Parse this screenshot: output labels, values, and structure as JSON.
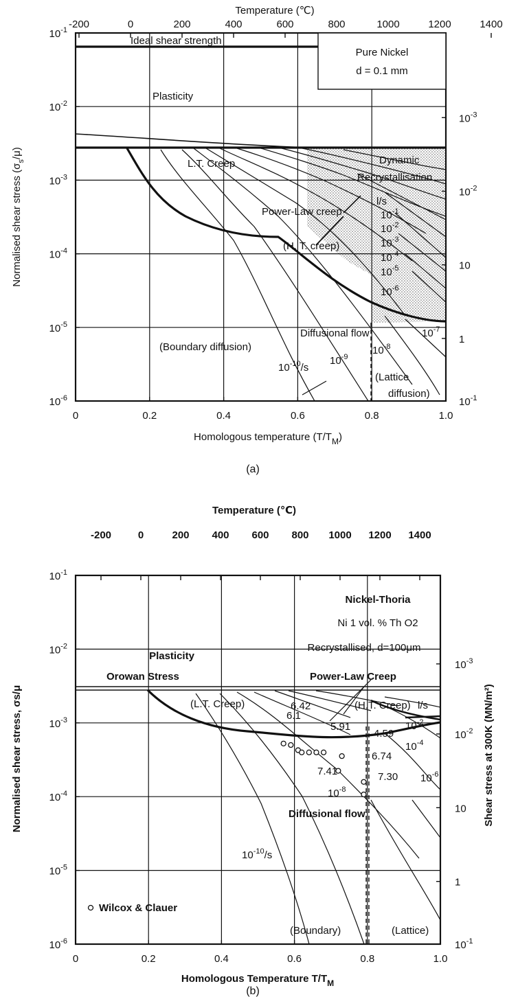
{
  "chart_data": [
    {
      "type": "line",
      "panel_label": "(a)",
      "top_axis_title": "Temperature (℃)",
      "top_ticks": [
        "-200",
        "0",
        "200",
        "400",
        "600",
        "800",
        "1000",
        "1200",
        "1400"
      ],
      "top_tick_values": [
        -200,
        0,
        200,
        400,
        600,
        800,
        1000,
        1200,
        1400
      ],
      "xlabel": "Homologous temperature (T/T",
      "xlabel_sub": "M",
      "xlabel_end": ")",
      "x_ticks": [
        "0",
        "0.2",
        "0.4",
        "0.6",
        "0.8",
        "1.0"
      ],
      "x_tick_values": [
        0,
        0.2,
        0.4,
        0.6,
        0.8,
        1.0
      ],
      "xlim": [
        0,
        1.0
      ],
      "ylabel": "Normalised shear stress (σ",
      "ylabel_sub": "s",
      "ylabel_end": "/μ)",
      "y_ticks": [
        "10-1",
        "10-2",
        "10-3",
        "10-4",
        "10-5",
        "10-6"
      ],
      "y_tick_exponents": [
        -1,
        -2,
        -3,
        -4,
        -5,
        -6
      ],
      "ylim_log10": [
        -6,
        -1
      ],
      "y_scale": "log",
      "right_ticks": [
        {
          "text": "10-3",
          "log10_pos": -2.15
        },
        {
          "text": "10-2",
          "log10_pos": -3.15
        },
        {
          "text": "10",
          "log10_pos": -4.15
        },
        {
          "text": "1",
          "log10_pos": -5.15
        },
        {
          "text": "10-1",
          "log10_pos": -6.0
        }
      ],
      "info_box": [
        "Pure Nickel",
        "d = 0.1 mm"
      ],
      "regions": [
        "Ideal shear strength",
        "Plasticity",
        "L.T. Creep",
        "Dynamic",
        "Recrystallisation",
        "Power-Law creep",
        "(H. T.  creep)",
        "Diffusional flow",
        "(Boundary diffusion)",
        "(Lattice",
        "diffusion)"
      ],
      "strain_rate_labels": [
        "l/s",
        "10-1",
        "10-2",
        "10-3",
        "10-4",
        "10-5",
        "10-6",
        "10-7",
        "10-8",
        "10-9",
        "10-10/s"
      ],
      "ideal_strength_log10": -1.2,
      "yield_log10": -2.4,
      "boundary_curve": [
        [
          0.14,
          -2.4
        ],
        [
          0.2,
          -2.95
        ],
        [
          0.3,
          -3.45
        ],
        [
          0.4,
          -3.75
        ],
        [
          0.53,
          -3.87
        ],
        [
          0.6,
          -4.2
        ],
        [
          0.7,
          -4.55
        ],
        [
          0.8,
          -4.75
        ],
        [
          0.9,
          -4.85
        ],
        [
          1.0,
          -4.85
        ]
      ],
      "contours": [
        {
          "label": "10-10/s",
          "points": [
            [
              0.22,
              -2.45
            ],
            [
              0.3,
              -3.0
            ],
            [
              0.38,
              -3.55
            ],
            [
              0.45,
              -4.1
            ],
            [
              0.5,
              -4.7
            ],
            [
              0.55,
              -5.4
            ],
            [
              0.58,
              -5.7
            ]
          ]
        },
        {
          "label": "10-9",
          "points": [
            [
              0.27,
              -2.45
            ],
            [
              0.35,
              -2.9
            ],
            [
              0.45,
              -3.4
            ],
            [
              0.53,
              -3.9
            ],
            [
              0.58,
              -4.35
            ],
            [
              0.64,
              -5.0
            ],
            [
              0.72,
              -5.6
            ],
            [
              0.8,
              -6.0
            ]
          ]
        }
      ]
    },
    {
      "type": "line",
      "panel_label": "(b)",
      "top_axis_title": "Temperature (℃)",
      "top_ticks": [
        "-200",
        "0",
        "200",
        "400",
        "600",
        "800",
        "1000",
        "1200",
        "1400"
      ],
      "top_tick_values": [
        -200,
        0,
        200,
        400,
        600,
        800,
        1000,
        1200,
        1400
      ],
      "xlabel": "Homologous Temperature T/T",
      "xlabel_sub": "M",
      "x_ticks": [
        "0",
        "0.2",
        "0.4",
        "0.6",
        "0.8",
        "1.0"
      ],
      "x_tick_values": [
        0,
        0.2,
        0.4,
        0.6,
        0.8,
        1.0
      ],
      "xlim": [
        0,
        1.0
      ],
      "ylabel": "Normalised shear stress, σs/μ",
      "right_ylabel": "Shear stress at 300K (MN/m²)",
      "y_ticks": [
        "10-1",
        "10-2",
        "10-3",
        "10-4",
        "10-5",
        "10-6"
      ],
      "y_tick_exponents": [
        -1,
        -2,
        -3,
        -4,
        -5,
        -6
      ],
      "ylim_log10": [
        -6,
        -1
      ],
      "y_scale": "log",
      "right_ticks": [
        {
          "text": "10-3",
          "log10_pos": -2.2
        },
        {
          "text": "10-2",
          "log10_pos": -3.15
        },
        {
          "text": "10",
          "log10_pos": -4.15
        },
        {
          "text": "1",
          "log10_pos": -5.15
        },
        {
          "text": "10-1",
          "log10_pos": -6.0
        }
      ],
      "info_box": [
        "Nickel-Thoria",
        "Ni 1 vol. % Th O2",
        "Recrystallised, d=100μm"
      ],
      "regions": [
        "Plasticity",
        "Orowan Stress",
        "Power-Law Creep",
        "(L.T. Creep)",
        "(H.T. Creep)",
        "Diffusional flow",
        "(Boundary)",
        "(Lattice)"
      ],
      "strain_rate_labels": [
        "l/s",
        "10-2",
        "10-4",
        "10-6",
        "10-8",
        "10-10/s"
      ],
      "data_labels": [
        "6.42",
        "6.1",
        "5.91",
        "4.59",
        "6.74",
        "7.41",
        "7.30"
      ],
      "legend": "Wilcox & Clauer",
      "orowan_log10": -3.0,
      "data_points": [
        [
          0.57,
          -3.28
        ],
        [
          0.59,
          -3.3
        ],
        [
          0.61,
          -3.37
        ],
        [
          0.62,
          -3.4
        ],
        [
          0.64,
          -3.4
        ],
        [
          0.66,
          -3.4
        ],
        [
          0.68,
          -3.4
        ],
        [
          0.73,
          -3.45
        ],
        [
          0.79,
          -3.8
        ],
        [
          0.79,
          -3.97
        ],
        [
          0.72,
          -3.65
        ]
      ]
    }
  ]
}
